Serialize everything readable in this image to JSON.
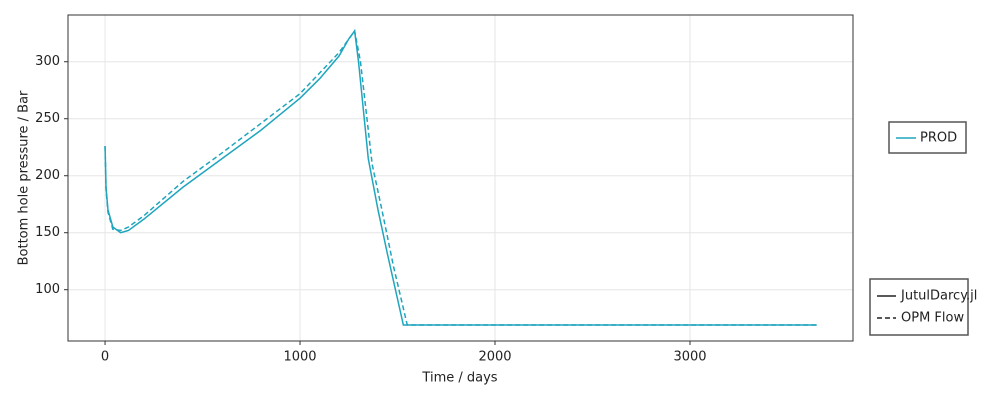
{
  "chart_data": {
    "type": "line",
    "xlabel": "Time / days",
    "ylabel": "Bottom hole pressure / Bar",
    "xlim": [
      -190,
      3836
    ],
    "xticks": [
      0,
      1000,
      2000,
      3000
    ],
    "ylim": [
      55,
      341
    ],
    "yticks": [
      100,
      150,
      200,
      250,
      300
    ],
    "grid": true,
    "groups": [
      {
        "name": "PROD",
        "color": "#1fa5bd"
      }
    ],
    "series": [
      {
        "name": "JutulDarcy.jl",
        "color": "#1fa5bd",
        "dash": "solid",
        "x": [
          0,
          5,
          15,
          40,
          80,
          120,
          200,
          400,
          600,
          800,
          1000,
          1100,
          1200,
          1250,
          1280,
          1300,
          1350,
          1400,
          1450,
          1530,
          3650
        ],
        "values": [
          226,
          190,
          170,
          155,
          150,
          152,
          162,
          190,
          215,
          240,
          268,
          285,
          305,
          320,
          327,
          300,
          215,
          170,
          130,
          69,
          69
        ]
      },
      {
        "name": "OPM Flow",
        "color": "#1fa5bd",
        "dash": "dashed",
        "x": [
          0,
          5,
          15,
          40,
          80,
          120,
          200,
          400,
          600,
          800,
          1000,
          1100,
          1200,
          1280,
          1310,
          1370,
          1420,
          1480,
          1550,
          3650
        ],
        "values": [
          226,
          188,
          168,
          153,
          152,
          155,
          165,
          195,
          220,
          246,
          272,
          290,
          308,
          327,
          300,
          210,
          170,
          120,
          69,
          69
        ]
      }
    ]
  }
}
